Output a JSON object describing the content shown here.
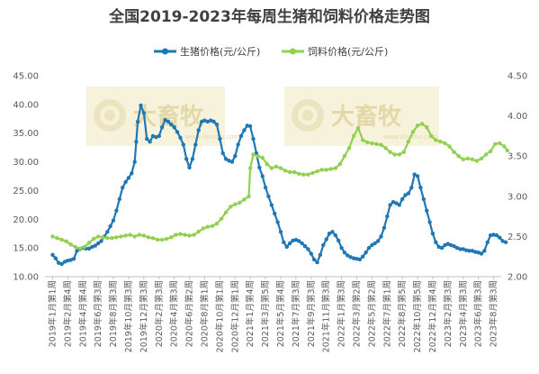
{
  "chart_data": {
    "type": "line",
    "title": "全国2019-2023年每周生猪和饲料价格走势图",
    "legend_placement": "top",
    "grid": false,
    "watermark": "大畜牧",
    "watermark_url": "www.dxumu.com",
    "y_left_ticks": [
      "10.00",
      "15.00",
      "20.00",
      "25.00",
      "30.00",
      "35.00",
      "40.00",
      "45.00"
    ],
    "y_right_ticks": [
      "2.00",
      "2.50",
      "3.00",
      "3.50",
      "4.00",
      "4.50"
    ],
    "ylim_left": [
      10,
      45
    ],
    "ylim_right": [
      2,
      4.5
    ],
    "x_tick_labels": [
      "2019年1月第1周",
      "2019年2月第4周",
      "2019年4月第4周",
      "2019年6月第3周",
      "2019年8月第3周",
      "2019年10月第3周",
      "2019年12月第3周",
      "2020年2月第3周",
      "2020年4月第3周",
      "2020年6月第2周",
      "2020年8月第1周",
      "2020年10月第1周",
      "2020年12月第1周",
      "2021年1月第4周",
      "2021年3月第5周",
      "2021年5月第4周",
      "2021年7月第3周",
      "2021年9月第3周",
      "2021年11月第3周",
      "2022年1月第3周",
      "2022年3月第2周",
      "2022年5月第2周",
      "2022年7月第1周",
      "2022年8月第5周",
      "2022年10月第5周",
      "2022年12月第4周",
      "2023年2月第3周",
      "2023年4月第3周",
      "2023年6月第3周",
      "2023年8月第3周"
    ],
    "series": [
      {
        "name": "生猪价格(元/公斤)",
        "axis": "left",
        "color": "#1f77b4",
        "marker": "dot",
        "points": [
          [
            0,
            13.8
          ],
          [
            0.2,
            13.2
          ],
          [
            0.4,
            12.4
          ],
          [
            0.6,
            12.2
          ],
          [
            0.8,
            12.6
          ],
          [
            1.0,
            12.8
          ],
          [
            1.2,
            12.9
          ],
          [
            1.4,
            13.1
          ],
          [
            1.6,
            14.5
          ],
          [
            1.8,
            14.8
          ],
          [
            2.0,
            15.0
          ],
          [
            2.2,
            14.9
          ],
          [
            2.4,
            14.9
          ],
          [
            2.6,
            15.2
          ],
          [
            2.8,
            15.4
          ],
          [
            3.0,
            15.8
          ],
          [
            3.2,
            16.2
          ],
          [
            3.4,
            17.0
          ],
          [
            3.6,
            17.8
          ],
          [
            3.8,
            18.8
          ],
          [
            4.0,
            19.8
          ],
          [
            4.2,
            21.5
          ],
          [
            4.4,
            23.5
          ],
          [
            4.6,
            25.5
          ],
          [
            4.8,
            26.5
          ],
          [
            5.0,
            27.2
          ],
          [
            5.2,
            28.0
          ],
          [
            5.4,
            30.0
          ],
          [
            5.5,
            33.5
          ],
          [
            5.6,
            37.0
          ],
          [
            5.8,
            39.8
          ],
          [
            6.0,
            38.5
          ],
          [
            6.2,
            34.0
          ],
          [
            6.4,
            33.5
          ],
          [
            6.6,
            34.5
          ],
          [
            6.8,
            34.3
          ],
          [
            7.0,
            34.5
          ],
          [
            7.2,
            36.0
          ],
          [
            7.4,
            37.3
          ],
          [
            7.6,
            37.0
          ],
          [
            7.8,
            36.5
          ],
          [
            8.0,
            36.0
          ],
          [
            8.2,
            35.2
          ],
          [
            8.4,
            34.2
          ],
          [
            8.6,
            33.0
          ],
          [
            8.8,
            30.5
          ],
          [
            9.0,
            29.0
          ],
          [
            9.2,
            30.5
          ],
          [
            9.4,
            33.0
          ],
          [
            9.6,
            35.5
          ],
          [
            9.8,
            37.0
          ],
          [
            10.0,
            37.2
          ],
          [
            10.2,
            37.0
          ],
          [
            10.4,
            37.2
          ],
          [
            10.6,
            37.0
          ],
          [
            10.8,
            36.5
          ],
          [
            11.0,
            34.0
          ],
          [
            11.2,
            31.5
          ],
          [
            11.4,
            30.5
          ],
          [
            11.6,
            30.2
          ],
          [
            11.8,
            30.0
          ],
          [
            12.0,
            31.0
          ],
          [
            12.2,
            33.0
          ],
          [
            12.4,
            34.5
          ],
          [
            12.6,
            35.5
          ],
          [
            12.8,
            36.3
          ],
          [
            13.0,
            36.2
          ],
          [
            13.2,
            34.0
          ],
          [
            13.4,
            31.5
          ],
          [
            13.6,
            29.0
          ],
          [
            13.8,
            27.5
          ],
          [
            14.0,
            25.5
          ],
          [
            14.2,
            24.0
          ],
          [
            14.4,
            22.5
          ],
          [
            14.6,
            21.0
          ],
          [
            14.8,
            19.5
          ],
          [
            15.0,
            17.8
          ],
          [
            15.2,
            16.0
          ],
          [
            15.4,
            15.2
          ],
          [
            15.6,
            15.8
          ],
          [
            15.8,
            16.3
          ],
          [
            16.0,
            16.4
          ],
          [
            16.2,
            16.2
          ],
          [
            16.4,
            15.8
          ],
          [
            16.6,
            15.3
          ],
          [
            16.8,
            14.8
          ],
          [
            17.0,
            14.0
          ],
          [
            17.2,
            13.0
          ],
          [
            17.4,
            12.5
          ],
          [
            17.6,
            13.8
          ],
          [
            17.8,
            15.5
          ],
          [
            18.0,
            16.5
          ],
          [
            18.2,
            17.5
          ],
          [
            18.4,
            17.8
          ],
          [
            18.6,
            17.2
          ],
          [
            18.8,
            16.3
          ],
          [
            19.0,
            15.0
          ],
          [
            19.2,
            14.2
          ],
          [
            19.4,
            13.7
          ],
          [
            19.6,
            13.4
          ],
          [
            19.8,
            13.2
          ],
          [
            20.0,
            13.1
          ],
          [
            20.2,
            13.0
          ],
          [
            20.4,
            13.5
          ],
          [
            20.6,
            14.2
          ],
          [
            20.8,
            15.0
          ],
          [
            21.0,
            15.5
          ],
          [
            21.2,
            15.8
          ],
          [
            21.4,
            16.2
          ],
          [
            21.6,
            17.0
          ],
          [
            21.8,
            18.5
          ],
          [
            22.0,
            20.5
          ],
          [
            22.2,
            22.5
          ],
          [
            22.4,
            23.0
          ],
          [
            22.6,
            22.8
          ],
          [
            22.8,
            22.5
          ],
          [
            23.0,
            23.5
          ],
          [
            23.2,
            24.2
          ],
          [
            23.4,
            24.5
          ],
          [
            23.6,
            25.5
          ],
          [
            23.8,
            27.8
          ],
          [
            24.0,
            27.5
          ],
          [
            24.2,
            25.5
          ],
          [
            24.4,
            23.5
          ],
          [
            24.6,
            21.5
          ],
          [
            24.8,
            19.5
          ],
          [
            25.0,
            17.5
          ],
          [
            25.2,
            16.0
          ],
          [
            25.4,
            15.2
          ],
          [
            25.6,
            15.0
          ],
          [
            25.8,
            15.5
          ],
          [
            26.0,
            15.7
          ],
          [
            26.2,
            15.5
          ],
          [
            26.4,
            15.3
          ],
          [
            26.6,
            15.0
          ],
          [
            26.8,
            14.8
          ],
          [
            27.0,
            14.8
          ],
          [
            27.2,
            14.6
          ],
          [
            27.4,
            14.5
          ],
          [
            27.6,
            14.5
          ],
          [
            27.8,
            14.3
          ],
          [
            28.0,
            14.2
          ],
          [
            28.2,
            14.0
          ],
          [
            28.4,
            14.5
          ],
          [
            28.6,
            16.0
          ],
          [
            28.8,
            17.2
          ],
          [
            29.0,
            17.3
          ],
          [
            29.2,
            17.2
          ],
          [
            29.4,
            16.8
          ],
          [
            29.6,
            16.2
          ],
          [
            29.8,
            16.0
          ]
        ]
      },
      {
        "name": "饲料价格(元/公斤)",
        "axis": "right",
        "color": "#92d050",
        "marker": "dot",
        "points": [
          [
            0,
            2.5
          ],
          [
            0.3,
            2.48
          ],
          [
            0.6,
            2.46
          ],
          [
            0.9,
            2.44
          ],
          [
            1.2,
            2.4
          ],
          [
            1.5,
            2.37
          ],
          [
            1.8,
            2.35
          ],
          [
            2.1,
            2.37
          ],
          [
            2.4,
            2.42
          ],
          [
            2.7,
            2.47
          ],
          [
            3.0,
            2.5
          ],
          [
            3.3,
            2.49
          ],
          [
            3.6,
            2.48
          ],
          [
            3.9,
            2.48
          ],
          [
            4.2,
            2.49
          ],
          [
            4.5,
            2.5
          ],
          [
            4.8,
            2.51
          ],
          [
            5.1,
            2.52
          ],
          [
            5.4,
            2.5
          ],
          [
            5.7,
            2.52
          ],
          [
            6.0,
            2.51
          ],
          [
            6.3,
            2.49
          ],
          [
            6.6,
            2.48
          ],
          [
            6.9,
            2.46
          ],
          [
            7.2,
            2.46
          ],
          [
            7.5,
            2.47
          ],
          [
            7.8,
            2.49
          ],
          [
            8.1,
            2.52
          ],
          [
            8.4,
            2.53
          ],
          [
            8.7,
            2.52
          ],
          [
            9.0,
            2.51
          ],
          [
            9.3,
            2.52
          ],
          [
            9.6,
            2.56
          ],
          [
            9.9,
            2.6
          ],
          [
            10.2,
            2.62
          ],
          [
            10.5,
            2.63
          ],
          [
            10.8,
            2.66
          ],
          [
            11.1,
            2.72
          ],
          [
            11.4,
            2.8
          ],
          [
            11.7,
            2.87
          ],
          [
            12.0,
            2.9
          ],
          [
            12.3,
            2.92
          ],
          [
            12.6,
            2.96
          ],
          [
            12.9,
            3.0
          ],
          [
            13.0,
            3.35
          ],
          [
            13.2,
            3.52
          ],
          [
            13.5,
            3.5
          ],
          [
            13.8,
            3.48
          ],
          [
            14.1,
            3.4
          ],
          [
            14.4,
            3.35
          ],
          [
            14.7,
            3.37
          ],
          [
            15.0,
            3.35
          ],
          [
            15.3,
            3.32
          ],
          [
            15.6,
            3.3
          ],
          [
            15.9,
            3.3
          ],
          [
            16.2,
            3.28
          ],
          [
            16.5,
            3.27
          ],
          [
            16.8,
            3.27
          ],
          [
            17.1,
            3.29
          ],
          [
            17.4,
            3.31
          ],
          [
            17.7,
            3.33
          ],
          [
            18.0,
            3.33
          ],
          [
            18.3,
            3.34
          ],
          [
            18.6,
            3.35
          ],
          [
            18.9,
            3.4
          ],
          [
            19.2,
            3.5
          ],
          [
            19.5,
            3.6
          ],
          [
            19.8,
            3.75
          ],
          [
            20.1,
            3.85
          ],
          [
            20.4,
            3.7
          ],
          [
            20.7,
            3.67
          ],
          [
            21.0,
            3.66
          ],
          [
            21.3,
            3.65
          ],
          [
            21.6,
            3.64
          ],
          [
            21.9,
            3.6
          ],
          [
            22.2,
            3.55
          ],
          [
            22.5,
            3.52
          ],
          [
            22.8,
            3.52
          ],
          [
            23.1,
            3.55
          ],
          [
            23.4,
            3.68
          ],
          [
            23.7,
            3.8
          ],
          [
            24.0,
            3.88
          ],
          [
            24.3,
            3.9
          ],
          [
            24.6,
            3.86
          ],
          [
            24.9,
            3.75
          ],
          [
            25.2,
            3.7
          ],
          [
            25.5,
            3.68
          ],
          [
            25.8,
            3.66
          ],
          [
            26.1,
            3.62
          ],
          [
            26.4,
            3.55
          ],
          [
            26.7,
            3.5
          ],
          [
            27.0,
            3.46
          ],
          [
            27.3,
            3.47
          ],
          [
            27.6,
            3.46
          ],
          [
            27.9,
            3.44
          ],
          [
            28.2,
            3.47
          ],
          [
            28.5,
            3.52
          ],
          [
            28.8,
            3.56
          ],
          [
            29.1,
            3.65
          ],
          [
            29.4,
            3.66
          ],
          [
            29.7,
            3.62
          ],
          [
            29.9,
            3.57
          ]
        ]
      }
    ]
  }
}
